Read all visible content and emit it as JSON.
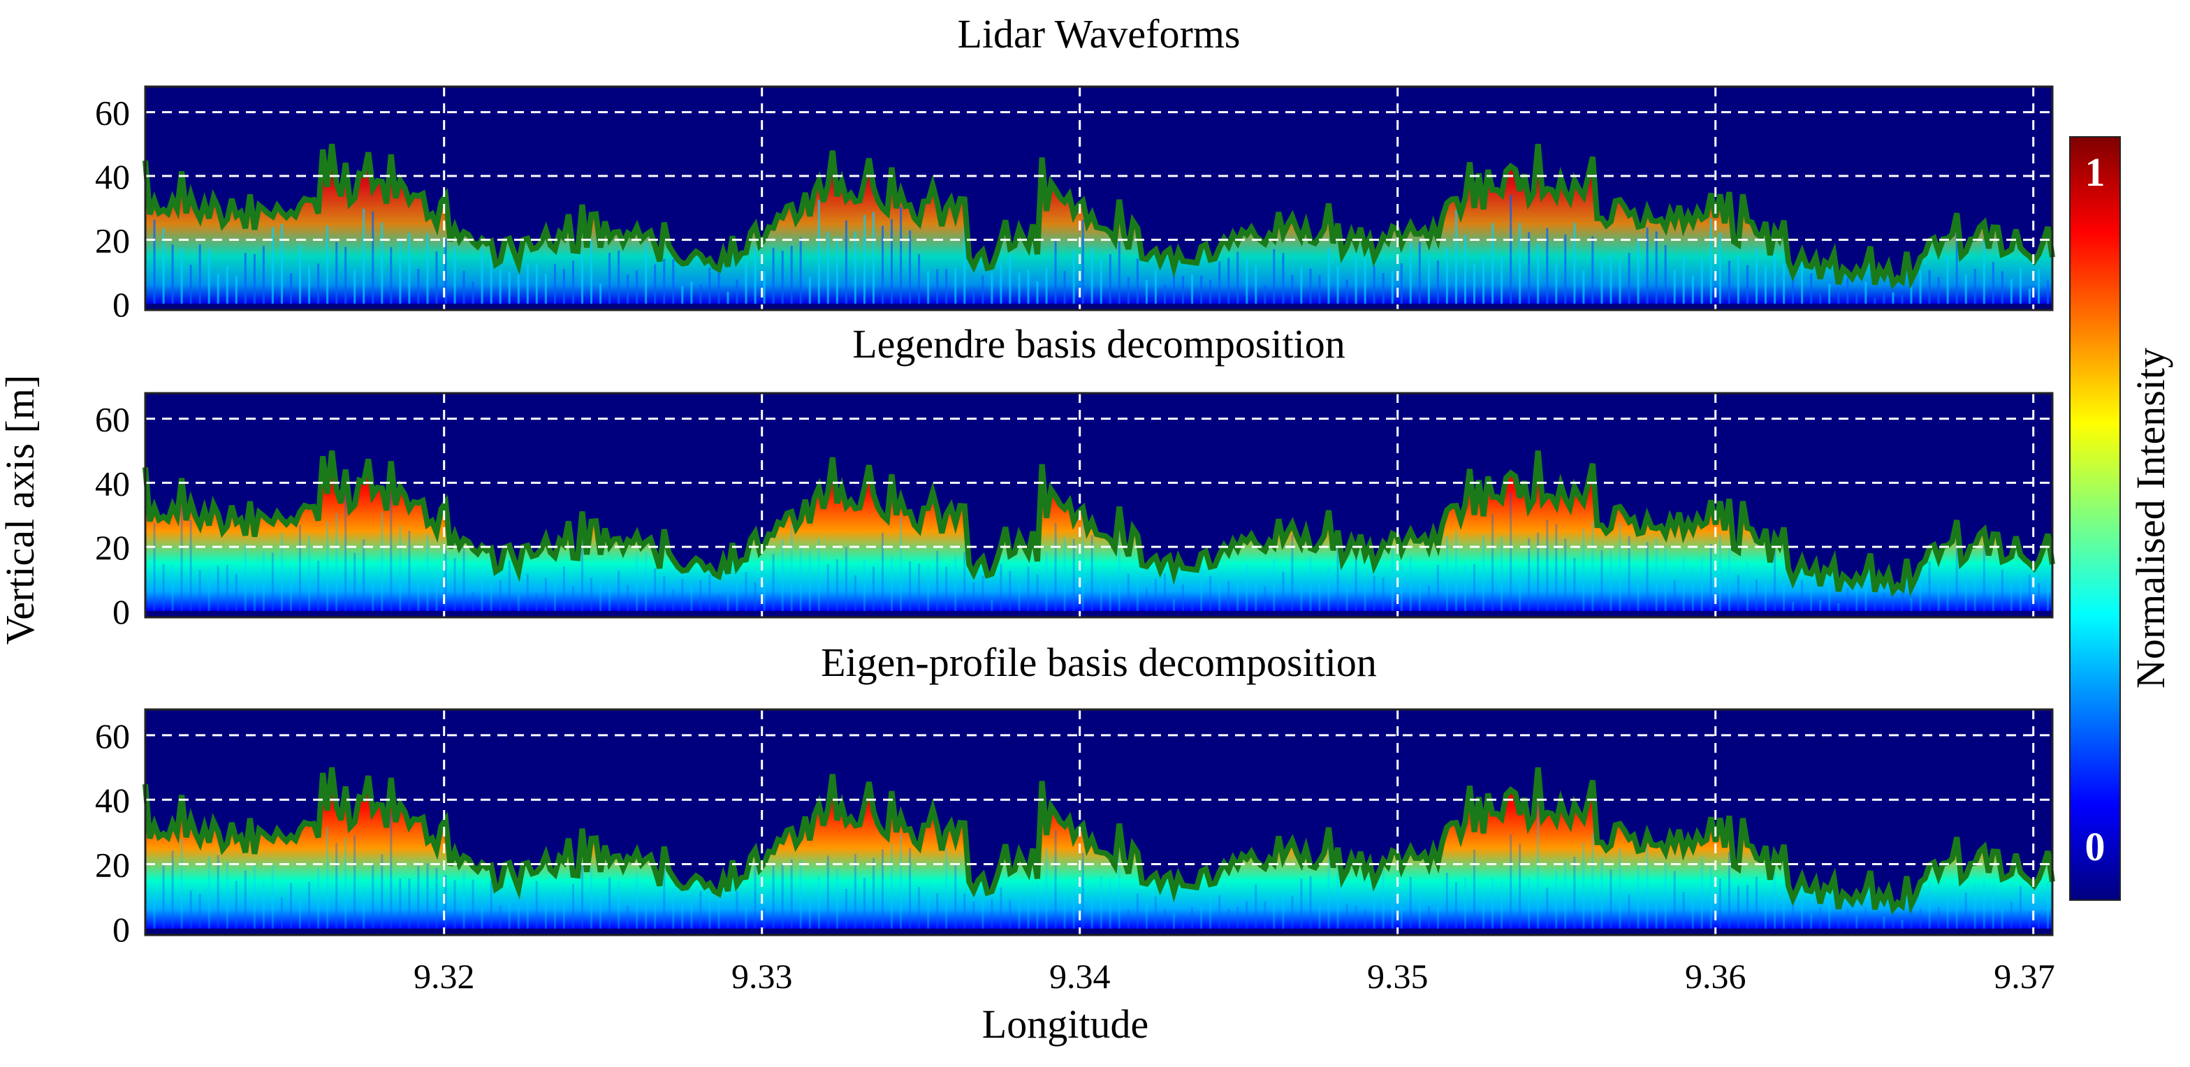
{
  "chart_data": [
    {
      "type": "heatmap",
      "title": "Lidar Waveforms",
      "xlabel": "Longitude",
      "ylabel": "Vertical axis [m]",
      "xlim": [
        9.3106,
        9.3706
      ],
      "ylim": [
        -2,
        68
      ],
      "x_ticks": [
        9.32,
        9.33,
        9.34,
        9.35,
        9.36,
        9.37
      ],
      "y_ticks": [
        0,
        20,
        40,
        60
      ],
      "x_grid": true,
      "y_grid": true,
      "show_x_tick_labels": false
    },
    {
      "type": "heatmap",
      "title": "Legendre basis decomposition",
      "xlabel": "Longitude",
      "ylabel": "Vertical axis [m]",
      "xlim": [
        9.3106,
        9.3706
      ],
      "ylim": [
        -2,
        68
      ],
      "x_ticks": [
        9.32,
        9.33,
        9.34,
        9.35,
        9.36,
        9.37
      ],
      "y_ticks": [
        0,
        20,
        40,
        60
      ],
      "x_grid": true,
      "y_grid": true,
      "show_x_tick_labels": false
    },
    {
      "type": "heatmap",
      "title": "Eigen-profile basis decomposition",
      "xlabel": "Longitude",
      "ylabel": "Vertical axis [m]",
      "xlim": [
        9.3106,
        9.3706
      ],
      "ylim": [
        -2,
        68
      ],
      "x_ticks": [
        9.32,
        9.33,
        9.34,
        9.35,
        9.36,
        9.37
      ],
      "y_ticks": [
        0,
        20,
        40,
        60
      ],
      "x_grid": true,
      "y_grid": true,
      "show_x_tick_labels": true
    }
  ],
  "shared": {
    "ylabel": "Vertical axis [m]",
    "xlabel": "Longitude"
  },
  "colorbar": {
    "label": "Normalised Intensity",
    "min_label": "0",
    "max_label": "1",
    "range": [
      0,
      1
    ],
    "colormap": "jet",
    "stops": [
      "#00007f",
      "#0000ff",
      "#007fff",
      "#00ffff",
      "#7fff7f",
      "#ffff00",
      "#ff7f00",
      "#ff0000",
      "#7f0000"
    ]
  },
  "colors": {
    "background": "#00007f",
    "canopy_outline": "#1a7a1a",
    "grid": "#ffffff"
  }
}
